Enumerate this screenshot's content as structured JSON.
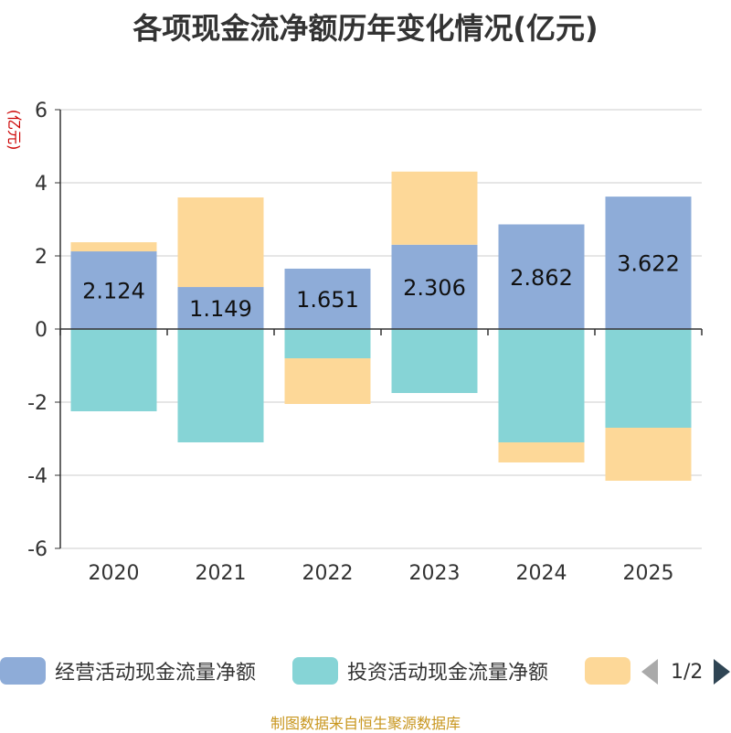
{
  "chart_data": {
    "type": "bar",
    "stacked": true,
    "title": "各项现金流净额历年变化情况(亿元)",
    "ylabel": "(亿元)",
    "xlabel": "",
    "categories": [
      "2020",
      "2021",
      "2022",
      "2023",
      "2024",
      "2025"
    ],
    "ylim": [
      -6,
      6
    ],
    "yticks": [
      -6,
      -4,
      -2,
      0,
      2,
      4,
      6
    ],
    "grid": true,
    "series": [
      {
        "name": "经营活动现金流量净额",
        "color": "#8eacd8",
        "values": [
          2.124,
          1.149,
          1.651,
          2.306,
          2.862,
          3.622
        ],
        "show_labels": true
      },
      {
        "name": "投资活动现金流量净额",
        "color": "#86d4d6",
        "values": [
          -2.25,
          -3.1,
          -0.8,
          -1.75,
          -3.1,
          -2.7
        ],
        "show_labels": false
      },
      {
        "name": "",
        "color": "#fdd898",
        "values": [
          0.25,
          2.45,
          -1.25,
          2.0,
          -0.55,
          -1.45
        ],
        "show_labels": false
      }
    ],
    "legend_position": "bottom"
  },
  "pager": {
    "label": "1/2"
  },
  "source": "制图数据来自恒生聚源数据库"
}
